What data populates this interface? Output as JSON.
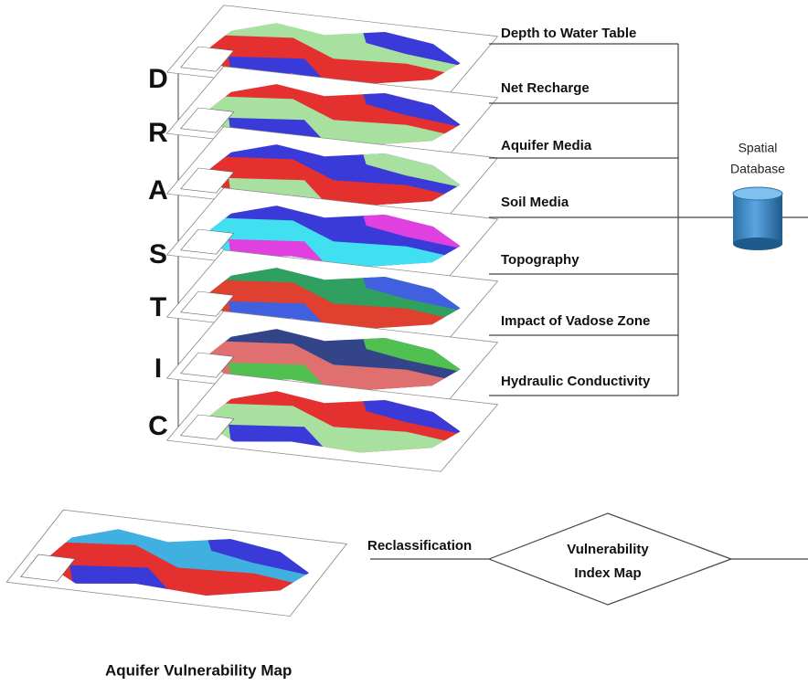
{
  "layers": [
    {
      "letter": "D",
      "label": "Depth to Water Table"
    },
    {
      "letter": "R",
      "label": "Net Recharge"
    },
    {
      "letter": "A",
      "label": "Aquifer Media"
    },
    {
      "letter": "S",
      "label": "Soil Media"
    },
    {
      "letter": "T",
      "label": "Topography"
    },
    {
      "letter": "I",
      "label": "Impact of Vadose Zone"
    },
    {
      "letter": "C",
      "label": "Hydraulic Conductivity"
    }
  ],
  "database": {
    "lines": [
      "Spatial",
      "Database"
    ]
  },
  "process": {
    "step": "Reclassification",
    "output": [
      "Vulnerability",
      "Index Map"
    ]
  },
  "result": {
    "caption": "Aquifer Vulnerability Map"
  }
}
